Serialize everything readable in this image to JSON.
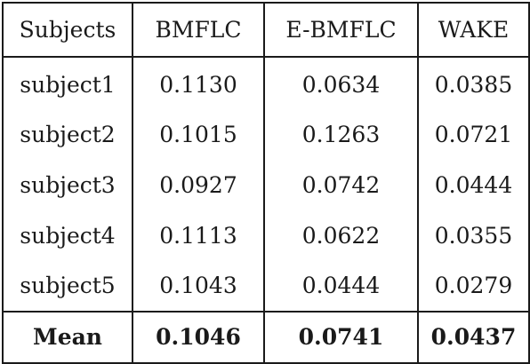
{
  "table": {
    "headers": [
      "Subjects",
      "BMFLC",
      "E-BMFLC",
      "WAKE"
    ],
    "rows": [
      [
        "subject1",
        "0.1130",
        "0.0634",
        "0.0385"
      ],
      [
        "subject2",
        "0.1015",
        "0.1263",
        "0.0721"
      ],
      [
        "subject3",
        "0.0927",
        "0.0742",
        "0.0444"
      ],
      [
        "subject4",
        "0.1113",
        "0.0622",
        "0.0355"
      ],
      [
        "subject5",
        "0.1043",
        "0.0444",
        "0.0279"
      ]
    ],
    "footer": [
      "Mean",
      "0.1046",
      "0.0741",
      "0.0437"
    ]
  }
}
